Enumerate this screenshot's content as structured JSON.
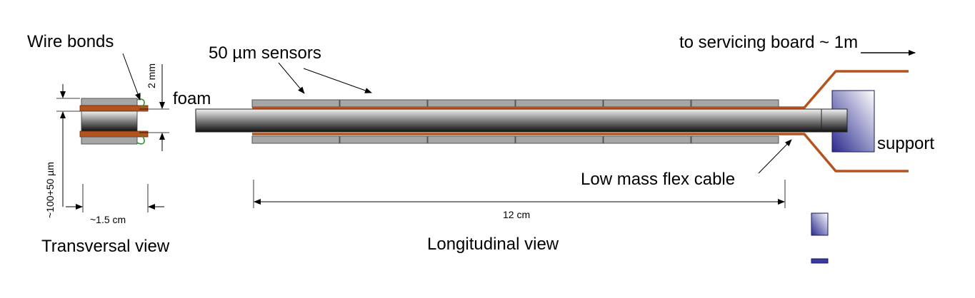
{
  "labels": {
    "wire_bonds": "Wire bonds",
    "sensors": "50 µm sensors",
    "foam": "foam",
    "servicing": "to servicing board ~ 1m",
    "support": "support",
    "flex_cable": "Low mass flex cable",
    "length": "12 cm",
    "longitudinal_view": "Longitudinal view",
    "transversal_view": "Transversal view",
    "two_mm": "2 mm",
    "thickness": "~100+50 µm",
    "width": "~1.5 cm"
  },
  "colors": {
    "copper": "#b5531f",
    "sensor": "#a6a6a6",
    "support_dark": "#2a2a8f",
    "support_light": "#ffffff",
    "wire": "#2e9a2e"
  }
}
